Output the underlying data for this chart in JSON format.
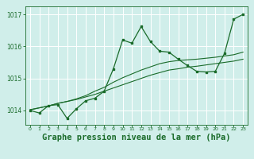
{
  "background_color": "#d0eeea",
  "grid_color": "#ffffff",
  "line_color": "#1a6b2a",
  "xlabel": "Graphe pression niveau de la mer (hPa)",
  "xlabel_fontsize": 7.5,
  "ylim": [
    1013.55,
    1017.25
  ],
  "xlim": [
    -0.5,
    23.5
  ],
  "yticks": [
    1014,
    1015,
    1016,
    1017
  ],
  "xticks": [
    0,
    1,
    2,
    3,
    4,
    5,
    6,
    7,
    8,
    9,
    10,
    11,
    12,
    13,
    14,
    15,
    16,
    17,
    18,
    19,
    20,
    21,
    22,
    23
  ],
  "series1_x": [
    0,
    1,
    2,
    3,
    4,
    5,
    6,
    7,
    8,
    9,
    10,
    11,
    12,
    13,
    14,
    15,
    16,
    17,
    18,
    19,
    20,
    21,
    22,
    23
  ],
  "series1_y": [
    1014.0,
    1013.92,
    1014.15,
    1014.18,
    1013.75,
    1014.05,
    1014.3,
    1014.38,
    1014.6,
    1015.3,
    1016.2,
    1016.1,
    1016.62,
    1016.15,
    1015.85,
    1015.82,
    1015.6,
    1015.4,
    1015.22,
    1015.2,
    1015.22,
    1015.78,
    1016.85,
    1017.0
  ],
  "series2_x": [
    0,
    1,
    2,
    3,
    4,
    5,
    6,
    7,
    8,
    9,
    10,
    11,
    12,
    13,
    14,
    15,
    16,
    17,
    18,
    19,
    20,
    21,
    22,
    23
  ],
  "series2_y": [
    1014.02,
    1014.08,
    1014.14,
    1014.22,
    1014.28,
    1014.34,
    1014.42,
    1014.5,
    1014.6,
    1014.7,
    1014.8,
    1014.9,
    1015.0,
    1015.1,
    1015.18,
    1015.26,
    1015.3,
    1015.35,
    1015.38,
    1015.42,
    1015.46,
    1015.5,
    1015.54,
    1015.6
  ],
  "series3_x": [
    0,
    1,
    2,
    3,
    4,
    5,
    6,
    7,
    8,
    9,
    10,
    11,
    12,
    13,
    14,
    15,
    16,
    17,
    18,
    19,
    20,
    21,
    22,
    23
  ],
  "series3_y": [
    1014.02,
    1014.08,
    1014.14,
    1014.22,
    1014.28,
    1014.36,
    1014.46,
    1014.6,
    1014.72,
    1014.88,
    1015.02,
    1015.14,
    1015.26,
    1015.36,
    1015.46,
    1015.52,
    1015.56,
    1015.58,
    1015.6,
    1015.63,
    1015.66,
    1015.7,
    1015.74,
    1015.82
  ]
}
